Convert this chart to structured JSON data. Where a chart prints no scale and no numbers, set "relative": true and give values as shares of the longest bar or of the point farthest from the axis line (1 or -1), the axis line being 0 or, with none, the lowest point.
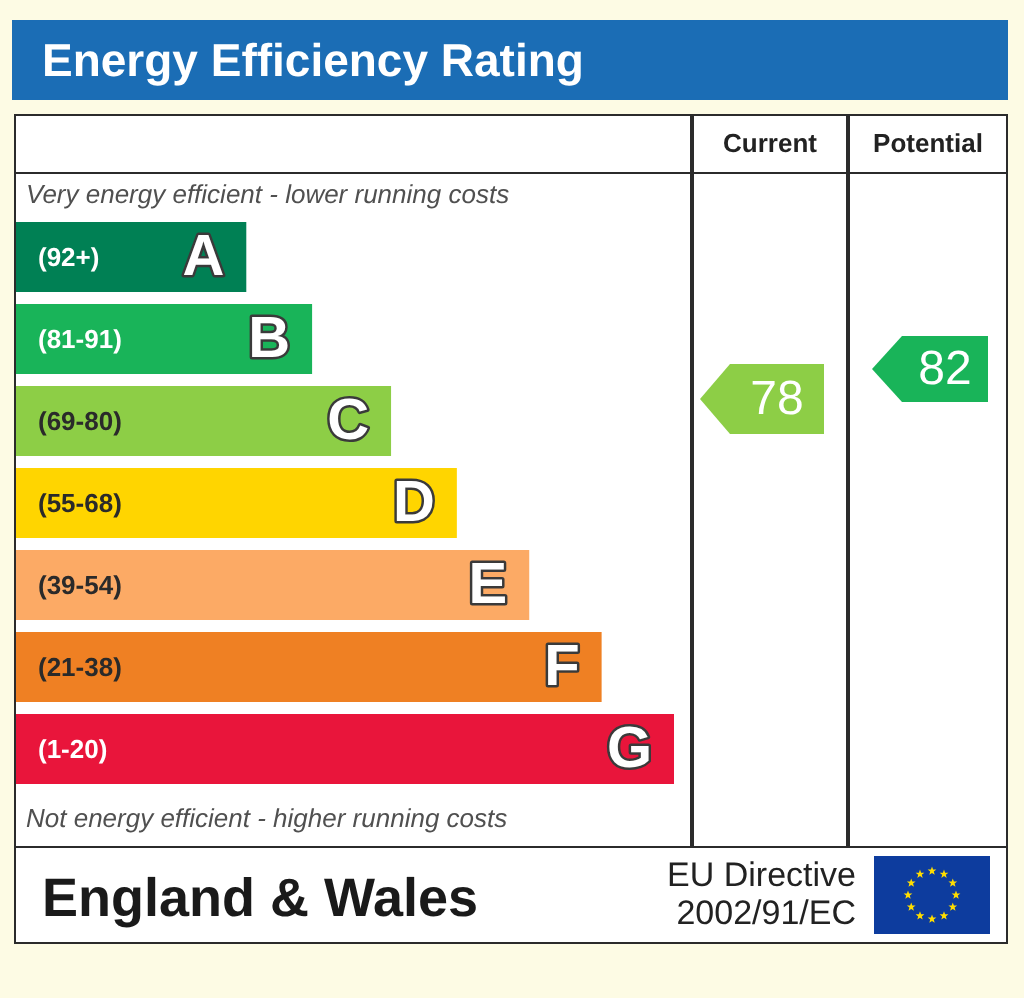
{
  "chart_data": {
    "type": "bar",
    "orientation": "horizontal",
    "relative": true,
    "title": "Energy Efficiency Rating",
    "categories": [
      "(92+)",
      "(81-91)",
      "(69-80)",
      "(55-68)",
      "(39-54)",
      "(21-38)",
      "(1-20)"
    ],
    "values": [
      0.35,
      0.45,
      0.57,
      0.67,
      0.78,
      0.89,
      1
    ],
    "colors": [
      "#008054",
      "#19b459",
      "#8dce46",
      "#ffd500",
      "#fcaa65",
      "#ef8023",
      "#e9153b"
    ],
    "annotations": [
      "Very energy efficient - lower running costs",
      {
        "text": "A",
        "y": "(92+)"
      },
      {
        "text": "B",
        "y": "(81-91)"
      },
      {
        "text": "C",
        "y": "(69-80)"
      },
      {
        "text": "D",
        "y": "(55-68)"
      },
      {
        "text": "E",
        "y": "(39-54)"
      },
      {
        "text": "F",
        "y": "(21-38)"
      },
      {
        "text": "G",
        "y": "(1-20)"
      },
      "Not energy efficient - higher running costs",
      "Current",
      "Potential",
      "78",
      "82",
      "England & Wales",
      "EU Directive 2002/91/EC"
    ]
  }
}
